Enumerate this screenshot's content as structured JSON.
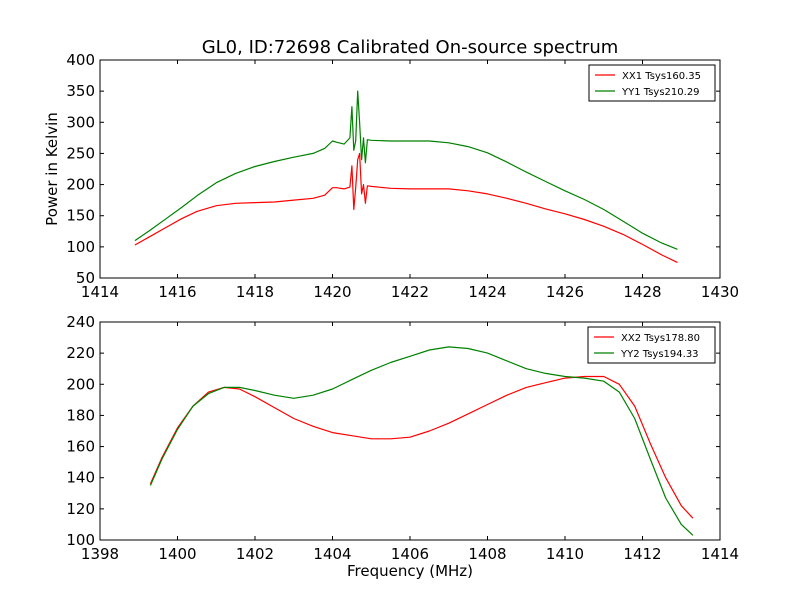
{
  "figure": {
    "title": "GL0, ID:72698 Calibrated On-source spectrum"
  },
  "chart_data": [
    {
      "type": "line",
      "title": "GL0, ID:72698 Calibrated On-source spectrum",
      "xlabel": "",
      "ylabel": "Power in Kelvin",
      "xlim": [
        1414,
        1430
      ],
      "ylim": [
        50,
        400
      ],
      "xticks": [
        1414,
        1416,
        1418,
        1420,
        1422,
        1424,
        1426,
        1428,
        1430
      ],
      "yticks": [
        50,
        100,
        150,
        200,
        250,
        300,
        350,
        400
      ],
      "legend_position": "top-right",
      "series": [
        {
          "name": "XX1 Tsys160.35",
          "color": "#ff0000",
          "x": [
            1414.9,
            1415.3,
            1415.7,
            1416.1,
            1416.5,
            1417.0,
            1417.5,
            1418.0,
            1418.5,
            1419.0,
            1419.5,
            1419.8,
            1420.0,
            1420.1,
            1420.3,
            1420.45,
            1420.5,
            1420.55,
            1420.6,
            1420.65,
            1420.7,
            1420.75,
            1420.8,
            1420.85,
            1420.9,
            1421.0,
            1421.5,
            1422.0,
            1422.5,
            1423.0,
            1423.5,
            1424.0,
            1424.5,
            1425.0,
            1425.5,
            1426.0,
            1426.5,
            1427.0,
            1427.5,
            1428.0,
            1428.5,
            1428.9
          ],
          "values": [
            103,
            117,
            131,
            145,
            157,
            166,
            170,
            171,
            172,
            175,
            178,
            183,
            195,
            195,
            193,
            196,
            230,
            160,
            195,
            240,
            250,
            185,
            200,
            170,
            198,
            197,
            194,
            193,
            193,
            193,
            190,
            185,
            178,
            170,
            161,
            153,
            144,
            133,
            120,
            104,
            87,
            75
          ]
        },
        {
          "name": "YY1 Tsys210.29",
          "color": "#008000",
          "x": [
            1414.9,
            1415.3,
            1415.7,
            1416.1,
            1416.5,
            1417.0,
            1417.5,
            1418.0,
            1418.5,
            1419.0,
            1419.5,
            1419.8,
            1420.0,
            1420.1,
            1420.3,
            1420.45,
            1420.5,
            1420.55,
            1420.6,
            1420.65,
            1420.7,
            1420.75,
            1420.8,
            1420.85,
            1420.9,
            1421.0,
            1421.5,
            1422.0,
            1422.5,
            1423.0,
            1423.5,
            1424.0,
            1424.5,
            1425.0,
            1425.5,
            1426.0,
            1426.5,
            1427.0,
            1427.5,
            1428.0,
            1428.5,
            1428.9
          ],
          "values": [
            110,
            127,
            145,
            163,
            182,
            203,
            218,
            229,
            237,
            244,
            250,
            258,
            270,
            268,
            265,
            275,
            325,
            255,
            270,
            350,
            300,
            240,
            275,
            235,
            272,
            271,
            270,
            270,
            270,
            267,
            261,
            251,
            236,
            220,
            205,
            190,
            176,
            160,
            141,
            122,
            106,
            96
          ]
        }
      ]
    },
    {
      "type": "line",
      "title": "",
      "xlabel": "Frequency (MHz)",
      "ylabel": "",
      "xlim": [
        1398,
        1414
      ],
      "ylim": [
        100,
        240
      ],
      "xticks": [
        1398,
        1400,
        1402,
        1404,
        1406,
        1408,
        1410,
        1412,
        1414
      ],
      "yticks": [
        100,
        120,
        140,
        160,
        180,
        200,
        220,
        240
      ],
      "legend_position": "top-right",
      "series": [
        {
          "name": "XX2 Tsys178.80",
          "color": "#ff0000",
          "x": [
            1399.3,
            1399.6,
            1400.0,
            1400.4,
            1400.8,
            1401.2,
            1401.6,
            1402.0,
            1402.5,
            1403.0,
            1403.5,
            1404.0,
            1404.5,
            1405.0,
            1405.5,
            1406.0,
            1406.5,
            1407.0,
            1407.5,
            1408.0,
            1408.5,
            1409.0,
            1409.5,
            1410.0,
            1410.5,
            1411.0,
            1411.4,
            1411.8,
            1412.2,
            1412.6,
            1413.0,
            1413.3
          ],
          "values": [
            136,
            153,
            172,
            186,
            195,
            198,
            197,
            192,
            185,
            178,
            173,
            169,
            167,
            165,
            165,
            166,
            170,
            175,
            181,
            187,
            193,
            198,
            201,
            204,
            205,
            205,
            200,
            186,
            162,
            140,
            122,
            114
          ]
        },
        {
          "name": "YY2 Tsys194.33",
          "color": "#008000",
          "x": [
            1399.3,
            1399.6,
            1400.0,
            1400.4,
            1400.8,
            1401.2,
            1401.6,
            1402.0,
            1402.5,
            1403.0,
            1403.5,
            1404.0,
            1404.5,
            1405.0,
            1405.5,
            1406.0,
            1406.5,
            1407.0,
            1407.5,
            1408.0,
            1408.5,
            1409.0,
            1409.5,
            1410.0,
            1410.5,
            1411.0,
            1411.4,
            1411.8,
            1412.2,
            1412.6,
            1413.0,
            1413.3
          ],
          "values": [
            135,
            152,
            171,
            186,
            194,
            198,
            198,
            196,
            193,
            191,
            193,
            197,
            203,
            209,
            214,
            218,
            222,
            224,
            223,
            220,
            215,
            210,
            207,
            205,
            204,
            202,
            195,
            178,
            152,
            127,
            110,
            103
          ]
        }
      ]
    }
  ]
}
